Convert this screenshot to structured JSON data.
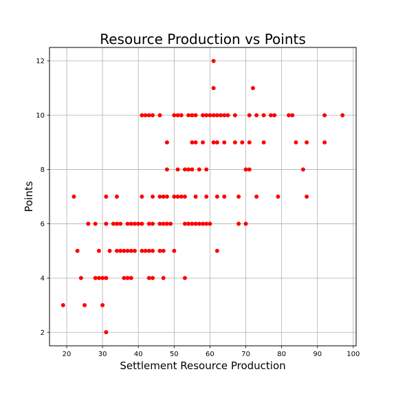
{
  "chart_data": {
    "type": "scatter",
    "title": "Resource Production vs Points",
    "xlabel": "Settlement Resource Production",
    "ylabel": "Points",
    "xlim": [
      15.2,
      100.8
    ],
    "ylim": [
      1.5,
      12.5
    ],
    "xticks": [
      20,
      30,
      40,
      50,
      60,
      70,
      80,
      90,
      100
    ],
    "yticks": [
      2,
      4,
      6,
      8,
      10,
      12
    ],
    "grid": true,
    "legend": "none",
    "marker_color": "#ff0000",
    "series": [
      {
        "points": [
          [
            19,
            3
          ],
          [
            25,
            3
          ],
          [
            30,
            3
          ],
          [
            31,
            2
          ],
          [
            24,
            4
          ],
          [
            28,
            4
          ],
          [
            29,
            4
          ],
          [
            30,
            4
          ],
          [
            31,
            4
          ],
          [
            36,
            4
          ],
          [
            37,
            4
          ],
          [
            38,
            4
          ],
          [
            43,
            4
          ],
          [
            44,
            4
          ],
          [
            47,
            4
          ],
          [
            53,
            4
          ],
          [
            23,
            5
          ],
          [
            29,
            5
          ],
          [
            32,
            5
          ],
          [
            34,
            5
          ],
          [
            35,
            5
          ],
          [
            36,
            5
          ],
          [
            37,
            5
          ],
          [
            38,
            5
          ],
          [
            39,
            5
          ],
          [
            41,
            5
          ],
          [
            42,
            5
          ],
          [
            43,
            5
          ],
          [
            44,
            5
          ],
          [
            46,
            5
          ],
          [
            47,
            5
          ],
          [
            50,
            5
          ],
          [
            62,
            5
          ],
          [
            26,
            6
          ],
          [
            28,
            6
          ],
          [
            31,
            6
          ],
          [
            33,
            6
          ],
          [
            34,
            6
          ],
          [
            35,
            6
          ],
          [
            37,
            6
          ],
          [
            38,
            6
          ],
          [
            39,
            6
          ],
          [
            40,
            6
          ],
          [
            41,
            6
          ],
          [
            43,
            6
          ],
          [
            44,
            6
          ],
          [
            46,
            6
          ],
          [
            47,
            6
          ],
          [
            48,
            6
          ],
          [
            49,
            6
          ],
          [
            53,
            6
          ],
          [
            54,
            6
          ],
          [
            55,
            6
          ],
          [
            56,
            6
          ],
          [
            57,
            6
          ],
          [
            58,
            6
          ],
          [
            59,
            6
          ],
          [
            60,
            6
          ],
          [
            68,
            6
          ],
          [
            70,
            6
          ],
          [
            22,
            7
          ],
          [
            31,
            7
          ],
          [
            34,
            7
          ],
          [
            41,
            7
          ],
          [
            44,
            7
          ],
          [
            46,
            7
          ],
          [
            47,
            7
          ],
          [
            48,
            7
          ],
          [
            50,
            7
          ],
          [
            51,
            7
          ],
          [
            52,
            7
          ],
          [
            53,
            7
          ],
          [
            56,
            7
          ],
          [
            59,
            7
          ],
          [
            62,
            7
          ],
          [
            64,
            7
          ],
          [
            68,
            7
          ],
          [
            73,
            7
          ],
          [
            79,
            7
          ],
          [
            87,
            7
          ],
          [
            48,
            8
          ],
          [
            51,
            8
          ],
          [
            53,
            8
          ],
          [
            54,
            8
          ],
          [
            55,
            8
          ],
          [
            57,
            8
          ],
          [
            59,
            8
          ],
          [
            70,
            8
          ],
          [
            71,
            8
          ],
          [
            86,
            8
          ],
          [
            48,
            9
          ],
          [
            55,
            9
          ],
          [
            56,
            9
          ],
          [
            58,
            9
          ],
          [
            61,
            9
          ],
          [
            62,
            9
          ],
          [
            64,
            9
          ],
          [
            67,
            9
          ],
          [
            69,
            9
          ],
          [
            71,
            9
          ],
          [
            75,
            9
          ],
          [
            84,
            9
          ],
          [
            87,
            9
          ],
          [
            92,
            9
          ],
          [
            41,
            10
          ],
          [
            42,
            10
          ],
          [
            43,
            10
          ],
          [
            44,
            10
          ],
          [
            46,
            10
          ],
          [
            50,
            10
          ],
          [
            51,
            10
          ],
          [
            52,
            10
          ],
          [
            54,
            10
          ],
          [
            55,
            10
          ],
          [
            56,
            10
          ],
          [
            58,
            10
          ],
          [
            59,
            10
          ],
          [
            60,
            10
          ],
          [
            61,
            10
          ],
          [
            62,
            10
          ],
          [
            63,
            10
          ],
          [
            64,
            10
          ],
          [
            65,
            10
          ],
          [
            67,
            10
          ],
          [
            71,
            10
          ],
          [
            73,
            10
          ],
          [
            75,
            10
          ],
          [
            77,
            10
          ],
          [
            78,
            10
          ],
          [
            82,
            10
          ],
          [
            83,
            10
          ],
          [
            92,
            10
          ],
          [
            97,
            10
          ],
          [
            61,
            11
          ],
          [
            72,
            11
          ],
          [
            61,
            12
          ]
        ]
      }
    ]
  }
}
